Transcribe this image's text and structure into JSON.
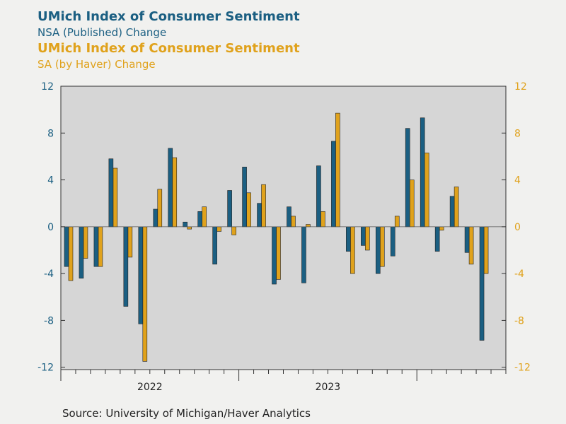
{
  "titles": {
    "nsa_title": "UMich Index of Consumer Sentiment",
    "nsa_subtitle": "NSA (Published) Change",
    "sa_title": "UMich Index of Consumer Sentiment",
    "sa_subtitle": "SA (by Haver) Change"
  },
  "colors": {
    "nsa": "#1b5f82",
    "sa": "#e0a21c",
    "plot_bg": "#d6d6d6",
    "page_bg": "#f1f1ef"
  },
  "source": "Source:  University of Michigan/Haver Analytics",
  "chart_data": {
    "type": "bar",
    "title": "UMich Index of Consumer Sentiment",
    "categories": [
      "2021-08",
      "2021-09",
      "2021-10",
      "2021-11",
      "2021-12",
      "2022-01",
      "2022-02",
      "2022-03",
      "2022-04",
      "2022-05",
      "2022-06",
      "2022-07",
      "2022-08",
      "2022-09",
      "2022-10",
      "2022-11",
      "2022-12",
      "2023-01",
      "2023-02",
      "2023-03",
      "2023-04",
      "2023-05",
      "2023-06",
      "2023-07",
      "2023-08",
      "2023-09",
      "2023-10",
      "2023-11",
      "2023-12",
      "2024-01"
    ],
    "series": [
      {
        "name": "NSA (Published) Change",
        "axis": "left",
        "values": [
          -3.4,
          -4.4,
          -3.4,
          5.8,
          -6.8,
          -8.3,
          1.5,
          6.7,
          0.4,
          1.3,
          -3.2,
          3.1,
          5.1,
          2.0,
          -4.9,
          1.7,
          -4.8,
          5.2,
          7.3,
          -2.1,
          -1.6,
          -4.0,
          -2.5,
          8.4,
          9.3,
          -2.1,
          2.6,
          -2.2,
          -9.7,
          null
        ]
      },
      {
        "name": "SA (by Haver) Change",
        "axis": "right",
        "values": [
          -4.6,
          -2.7,
          -3.4,
          5.0,
          -2.6,
          -11.5,
          3.2,
          5.9,
          -0.2,
          1.7,
          -0.4,
          -0.7,
          2.9,
          3.6,
          -4.5,
          0.9,
          0.2,
          1.3,
          9.7,
          -4.0,
          -2.0,
          -3.4,
          0.9,
          4.0,
          6.3,
          -0.3,
          3.4,
          -3.2,
          -4.0,
          null
        ]
      }
    ],
    "yticks": [
      12,
      8,
      4,
      0,
      -4,
      -8,
      -12
    ],
    "ytick_labels": [
      "12",
      "8",
      "4",
      "0",
      "-4",
      "-8",
      "-12"
    ],
    "ylim": [
      -12.2,
      12
    ],
    "x_labels": [
      {
        "text": "2022",
        "at_index": 5.5
      },
      {
        "text": "2023",
        "at_index": 17.5
      }
    ],
    "year_boundaries": [
      0,
      12,
      24
    ],
    "grid": false,
    "xlabel": "",
    "ylabel": ""
  }
}
